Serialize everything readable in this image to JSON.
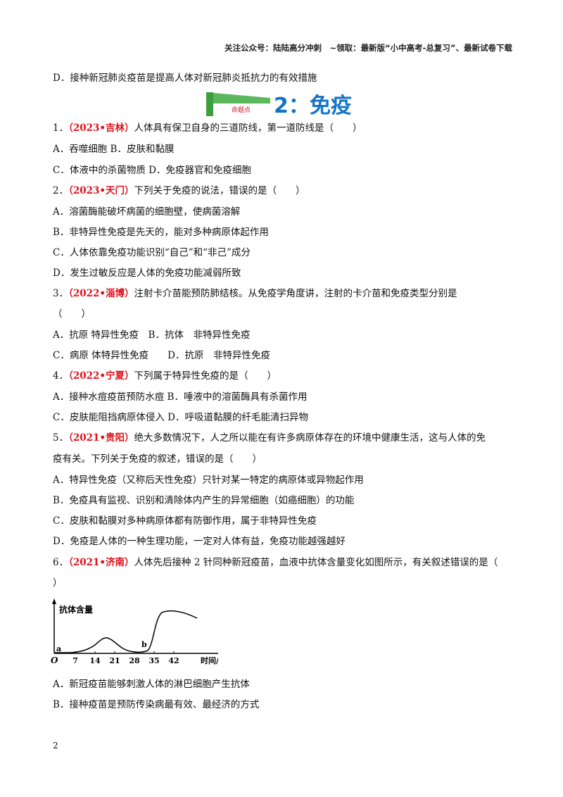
{
  "header": "关注公众号：陆陆高分冲刺　~领取：最新版“小中高考-总复习”、最新试卷下载",
  "prev_option": "D．接种新冠肺炎疫苗是提高人体对新冠肺炎抵抗力的有效措施",
  "section": {
    "badge": "命题点",
    "title": "2：免疫"
  },
  "questions": [
    {
      "num": "1．",
      "src": "（2023•吉林）",
      "stem": "人体具有保卫自身的三道防线，第一道防线是（　　）",
      "lines": [
        "A．吞噬细胞 B．皮肤和黏膜",
        "C．体液中的杀菌物质 D．免疫器官和免疫细胞"
      ]
    },
    {
      "num": "2．",
      "src": "（2023•天门）",
      "stem": "下列关于免疫的说法，错误的是（　　）",
      "lines": [
        "A．溶菌酶能破坏病菌的细胞壁，使病菌溶解",
        "B．非特异性免疫是先天的，能对多种病原体起作用",
        "C．人体依靠免疫功能识别“自己”和“非己”成分",
        "D．发生过敏反应是人体的免疫功能减弱所致"
      ]
    },
    {
      "num": "3．",
      "src": "（2022•淄博）",
      "stem": "注射卡介苗能预防肺结核。从免疫学角度讲，注射的卡介苗和免疫类型分别是",
      "cont": "（　　）",
      "lines": [
        "A．抗原 特异性免疫　B．抗体　非特异性免疫",
        "C．病原 体特异性免疫　　D．抗原　非特异性免疫"
      ]
    },
    {
      "num": "4．",
      "src": "（2022•宁夏）",
      "stem": "下列属于特异性免疫的是（　　）",
      "lines": [
        "A．接种水痘疫苗预防水痘 B．唾液中的溶菌酶具有杀菌作用",
        "C．皮肤能阻挡病原体侵入 D．呼吸道黏膜的纤毛能清扫异物"
      ]
    },
    {
      "num": "5．",
      "src": "（2021•贵阳）",
      "stem": "绝大多数情况下，人之所以能在有许多病原体存在的环境中健康生活，这与人体的免",
      "cont": "疫有关。下列关于免疫的叙述，错误的是（　　）",
      "lines": [
        "A．特异性免疫（又称后天性免疫）只针对某一特定的病原体或异物起作用",
        "B．免疫具有监视、识别和清除体内产生的异常细胞（如癌细胞）的功能",
        "C．皮肤和黏膜对多种病原体都有防御作用，属于非特异性免疫",
        "D．免疫是人体的一种生理功能，一定对人体有益，免疫功能越强越好"
      ]
    },
    {
      "num": "6．",
      "src": "（2021•济南）",
      "stem": "人体先后接种 2 针同种新冠疫苗，血液中抗体含量变化如图所示，有关叙述错误的是（",
      "cont": "）",
      "lines": [
        "A．新冠疫苗能够刺激人体的淋巴细胞产生抗体",
        "B．接种疫苗是预防传染病最有效、最经济的方式"
      ]
    }
  ],
  "figure": {
    "ylabel": "抗体含量",
    "xlabel": "时间/天",
    "origin": "O",
    "ticks": [
      "7",
      "14",
      "21",
      "28",
      "35",
      "42"
    ],
    "point_a": "a",
    "point_b": "b"
  },
  "page_number": "2"
}
